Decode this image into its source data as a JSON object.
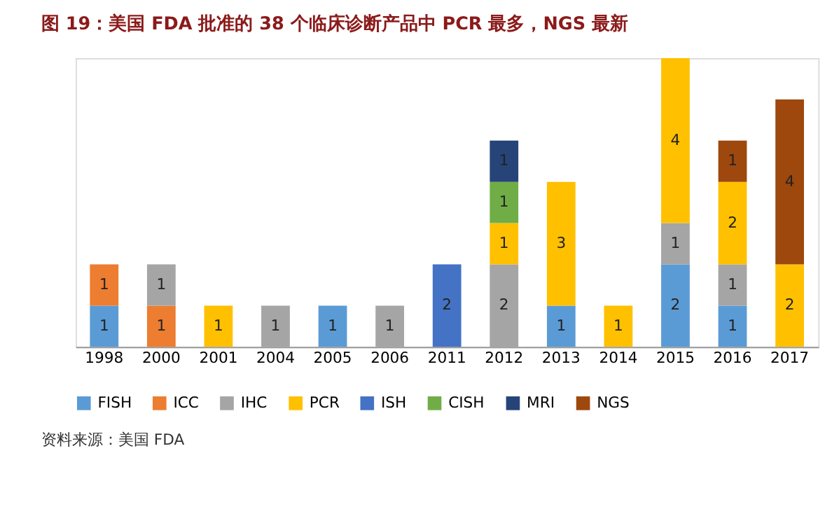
{
  "chart_data": {
    "type": "bar",
    "stacked": true,
    "data_labels": true,
    "legend": "bottom",
    "grid": false,
    "title": "图 19：美国 FDA 批准的 38 个临床诊断产品中 PCR 最多，NGS 最新",
    "annotations": [
      "资料来源：美国 FDA"
    ],
    "categories": [
      "1998",
      "2000",
      "2001",
      "2004",
      "2005",
      "2006",
      "2011",
      "2012",
      "2013",
      "2014",
      "2015",
      "2016",
      "2017"
    ],
    "series": [
      {
        "name": "FISH",
        "color": "#5b9bd5",
        "values": [
          1,
          null,
          null,
          null,
          1,
          null,
          null,
          null,
          1,
          null,
          2,
          1,
          null
        ]
      },
      {
        "name": "ICC",
        "color": "#ed7d31",
        "values": [
          1,
          1,
          null,
          null,
          null,
          null,
          null,
          null,
          null,
          null,
          null,
          null,
          null
        ]
      },
      {
        "name": "IHC",
        "color": "#a5a5a5",
        "values": [
          null,
          1,
          null,
          1,
          null,
          1,
          null,
          2,
          null,
          null,
          1,
          1,
          null
        ]
      },
      {
        "name": "PCR",
        "color": "#ffc000",
        "values": [
          null,
          null,
          1,
          null,
          null,
          null,
          null,
          1,
          3,
          1,
          4,
          2,
          2
        ]
      },
      {
        "name": "ISH",
        "color": "#4472c4",
        "values": [
          null,
          null,
          null,
          null,
          null,
          null,
          2,
          null,
          null,
          null,
          null,
          null,
          null
        ]
      },
      {
        "name": "CISH",
        "color": "#70ad47",
        "values": [
          null,
          null,
          null,
          null,
          null,
          null,
          null,
          1,
          null,
          null,
          null,
          null,
          null
        ]
      },
      {
        "name": "MRI",
        "color": "#264478",
        "values": [
          null,
          null,
          null,
          null,
          null,
          null,
          null,
          1,
          null,
          null,
          null,
          null,
          null
        ]
      },
      {
        "name": "NGS",
        "color": "#9e480e",
        "values": [
          null,
          null,
          null,
          null,
          null,
          null,
          null,
          null,
          null,
          null,
          null,
          1,
          4
        ]
      }
    ]
  }
}
